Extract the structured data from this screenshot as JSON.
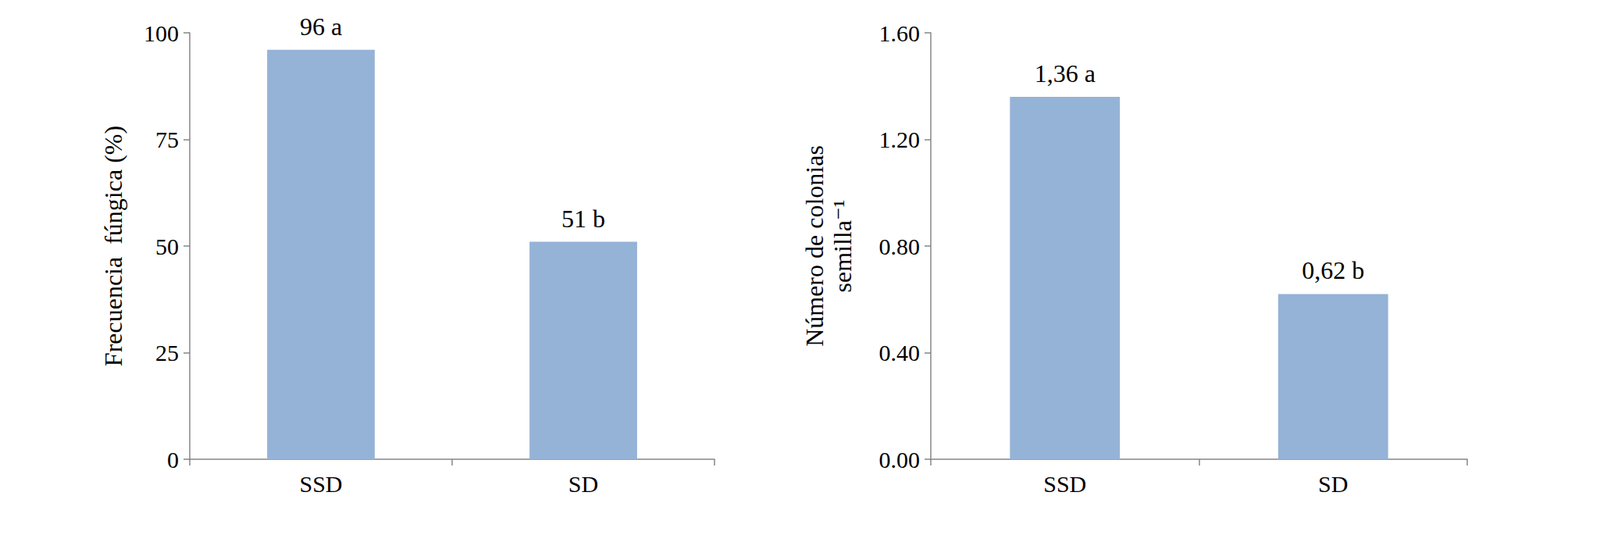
{
  "chart_data": [
    {
      "type": "bar",
      "categories": [
        "SSD",
        "SD"
      ],
      "values": [
        96,
        51
      ],
      "value_labels": [
        "96 a",
        "51 b"
      ],
      "color": "#95b3d7",
      "y_label": "Frecuencia  fúngica (%)",
      "ylim": [
        0,
        100
      ],
      "yticks": [
        0,
        25,
        50,
        75,
        100
      ],
      "data_labels": true,
      "grid": false
    },
    {
      "type": "bar",
      "categories": [
        "SSD",
        "SD"
      ],
      "values": [
        1.36,
        0.62
      ],
      "value_labels": [
        "1,36 a",
        "0,62 b"
      ],
      "color": "#95b3d7",
      "y_label": "Número de colonias\nsemilla⁻¹",
      "ylim": [
        0,
        1.6
      ],
      "yticks": [
        {
          "value": 0,
          "label": "0.00"
        },
        {
          "value": 0.4,
          "label": "0.40"
        },
        {
          "value": 0.8,
          "label": "0.80"
        },
        {
          "value": 1.2,
          "label": "1.20"
        },
        {
          "value": 1.6,
          "label": "1.60"
        }
      ],
      "data_labels": true,
      "grid": false
    }
  ]
}
